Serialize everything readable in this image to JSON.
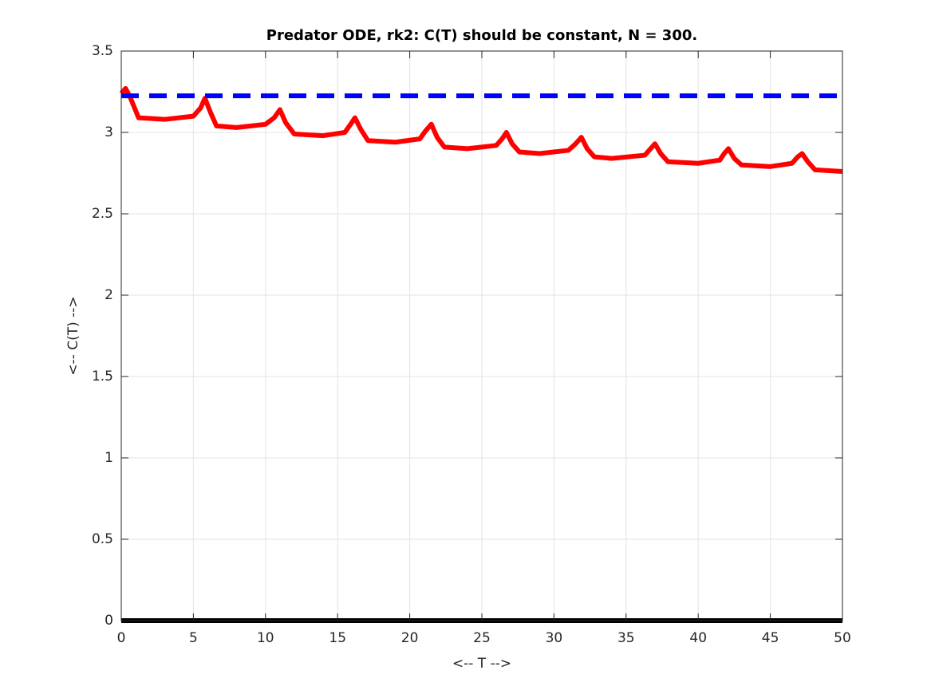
{
  "chart_data": {
    "type": "line",
    "title": "Predator ODE, rk2: C(T) should be constant, N = 300.",
    "x_label": "<-- T -->",
    "y_label": "<-- C(T) -->",
    "xlim": [
      0,
      50
    ],
    "ylim": [
      0,
      3.5
    ],
    "xticks": [
      0,
      5,
      10,
      15,
      20,
      25,
      30,
      35,
      40,
      45,
      50
    ],
    "yticks": [
      0,
      0.5,
      1,
      1.5,
      2,
      2.5,
      3,
      3.5
    ],
    "grid": true,
    "series": [
      {
        "color": "#ff0000",
        "line_style": "solid",
        "x": [
          0,
          0.3,
          0.6,
          1.2,
          3,
          5,
          5.5,
          5.8,
          6.2,
          6.6,
          8,
          10,
          10.6,
          11,
          11.4,
          12,
          14,
          15.5,
          15.9,
          16.2,
          16.6,
          17.1,
          19,
          20.7,
          21.1,
          21.5,
          21.9,
          22.4,
          24,
          26,
          26.4,
          26.7,
          27.1,
          27.6,
          29,
          31,
          31.5,
          31.9,
          32.3,
          32.8,
          34,
          36.3,
          36.7,
          37,
          37.4,
          37.9,
          40,
          41.5,
          41.8,
          42.1,
          42.5,
          43,
          45,
          46.5,
          46.9,
          47.2,
          47.6,
          48.1,
          50
        ],
        "values": [
          3.24,
          3.27,
          3.22,
          3.09,
          3.08,
          3.1,
          3.15,
          3.21,
          3.12,
          3.04,
          3.03,
          3.05,
          3.09,
          3.14,
          3.06,
          2.99,
          2.98,
          3.0,
          3.05,
          3.09,
          3.02,
          2.95,
          2.94,
          2.96,
          3.01,
          3.05,
          2.97,
          2.91,
          2.9,
          2.92,
          2.96,
          3.0,
          2.93,
          2.88,
          2.87,
          2.89,
          2.93,
          2.97,
          2.9,
          2.85,
          2.84,
          2.86,
          2.9,
          2.93,
          2.87,
          2.82,
          2.81,
          2.83,
          2.87,
          2.9,
          2.84,
          2.8,
          2.79,
          2.81,
          2.85,
          2.87,
          2.82,
          2.77,
          2.76
        ]
      },
      {
        "color": "#0000ff",
        "line_style": "dashed",
        "x": [
          0,
          50
        ],
        "values": [
          3.225,
          3.225
        ]
      },
      {
        "color": "#000000",
        "line_style": "solid",
        "x": [
          0,
          50
        ],
        "values": [
          0,
          0
        ]
      }
    ]
  }
}
